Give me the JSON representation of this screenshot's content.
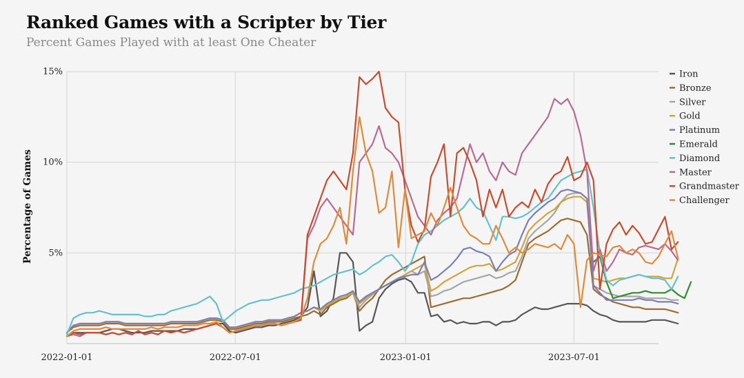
{
  "header": {
    "title": "Ranked Games with a Scripter by Tier",
    "subtitle": "Percent Games Played with at least One Cheater"
  },
  "chart_data": {
    "type": "line",
    "title": "Ranked Games with a Scripter by Tier",
    "subtitle": "Percent Games Played with at least One Cheater",
    "xlabel": "",
    "ylabel": "Percentage of Games",
    "ylim": [
      0,
      15
    ],
    "yticks": [
      5,
      10,
      15
    ],
    "ytick_labels": [
      "5%",
      "10%",
      "15%"
    ],
    "x_start_weeks": 0,
    "x_end_weeks": 91,
    "xticks_weeks": [
      0,
      25.9,
      52.1,
      78.0
    ],
    "xtick_labels": [
      "2022-01-01",
      "2022-07-01",
      "2023-01-01",
      "2023-07-01"
    ],
    "grid": true,
    "legend_position": "right",
    "series": [
      {
        "name": "Iron",
        "color": "#555555",
        "start": 0,
        "values": [
          0.4,
          0.6,
          0.6,
          0.6,
          0.6,
          0.6,
          0.7,
          0.8,
          0.8,
          0.7,
          0.6,
          0.6,
          0.6,
          0.7,
          0.7,
          0.7,
          0.7,
          0.7,
          0.8,
          0.8,
          0.8,
          0.9,
          1.0,
          1.1,
          1.1,
          0.7,
          0.6,
          0.7,
          0.8,
          0.9,
          0.9,
          1.0,
          1.0,
          1.1,
          1.2,
          1.3,
          1.5,
          2.0,
          4.0,
          1.5,
          1.8,
          2.5,
          5.0,
          5.0,
          4.5,
          0.7,
          1.0,
          1.2,
          2.5,
          3.0,
          3.3,
          3.5,
          3.6,
          3.4,
          2.8,
          2.8,
          1.5,
          1.6,
          1.2,
          1.3,
          1.1,
          1.2,
          1.1,
          1.1,
          1.2,
          1.2,
          1.0,
          1.2,
          1.2,
          1.3,
          1.6,
          1.8,
          2.0,
          1.9,
          1.9,
          2.0,
          2.1,
          2.2,
          2.2,
          2.2,
          2.1,
          1.8,
          1.6,
          1.5,
          1.3,
          1.2,
          1.2,
          1.2,
          1.2,
          1.2,
          1.3,
          1.3,
          1.3,
          1.2,
          1.1
        ]
      },
      {
        "name": "Bronze",
        "color": "#9c6b2e",
        "start": 0,
        "values": [
          0.6,
          0.9,
          1.0,
          1.0,
          1.0,
          1.0,
          1.1,
          1.1,
          1.1,
          1.0,
          1.0,
          1.0,
          1.0,
          1.0,
          1.0,
          1.0,
          1.1,
          1.1,
          1.1,
          1.1,
          1.1,
          1.2,
          1.3,
          1.3,
          1.2,
          0.8,
          0.8,
          0.9,
          1.0,
          1.1,
          1.1,
          1.2,
          1.2,
          1.2,
          1.3,
          1.4,
          1.5,
          1.6,
          1.8,
          1.6,
          2.0,
          2.2,
          2.4,
          2.5,
          2.8,
          1.8,
          2.2,
          2.5,
          3.0,
          3.5,
          3.8,
          4.0,
          4.2,
          4.4,
          4.6,
          4.8,
          2.0,
          2.1,
          2.2,
          2.3,
          2.4,
          2.5,
          2.5,
          2.6,
          2.7,
          2.8,
          2.9,
          3.0,
          3.2,
          3.5,
          4.5,
          5.5,
          5.8,
          6.0,
          6.2,
          6.5,
          6.8,
          6.9,
          6.8,
          6.7,
          6.0,
          3.0,
          2.7,
          2.5,
          2.3,
          2.2,
          2.1,
          2.0,
          2.0,
          1.9,
          1.9,
          1.9,
          1.9,
          1.8,
          1.7
        ]
      },
      {
        "name": "Silver",
        "color": "#a6a6a6",
        "start": 0,
        "values": [
          0.6,
          1.0,
          1.1,
          1.1,
          1.1,
          1.1,
          1.2,
          1.2,
          1.2,
          1.1,
          1.1,
          1.1,
          1.1,
          1.1,
          1.1,
          1.1,
          1.2,
          1.2,
          1.2,
          1.2,
          1.2,
          1.3,
          1.4,
          1.4,
          1.3,
          0.9,
          0.9,
          1.0,
          1.1,
          1.2,
          1.2,
          1.3,
          1.3,
          1.3,
          1.4,
          1.5,
          1.7,
          1.8,
          2.0,
          1.8,
          2.1,
          2.3,
          2.5,
          2.6,
          2.8,
          2.0,
          2.4,
          2.7,
          3.0,
          3.2,
          3.4,
          3.6,
          3.8,
          4.0,
          3.8,
          4.0,
          2.6,
          2.7,
          2.9,
          3.0,
          3.2,
          3.4,
          3.5,
          3.6,
          3.7,
          3.8,
          3.6,
          3.7,
          3.9,
          4.0,
          4.8,
          5.8,
          6.2,
          6.5,
          6.8,
          7.2,
          7.8,
          8.2,
          8.3,
          8.3,
          8.0,
          3.2,
          3.0,
          2.8,
          2.7,
          2.6,
          2.6,
          2.6,
          2.6,
          2.5,
          2.5,
          2.5,
          2.5,
          2.4,
          2.4
        ]
      },
      {
        "name": "Gold",
        "color": "#d1a33a",
        "start": 0,
        "values": [
          0.6,
          1.0,
          1.1,
          1.1,
          1.1,
          1.1,
          1.2,
          1.2,
          1.2,
          1.1,
          1.1,
          1.1,
          1.1,
          1.1,
          1.1,
          1.1,
          1.2,
          1.2,
          1.2,
          1.2,
          1.2,
          1.3,
          1.4,
          1.4,
          1.3,
          0.9,
          0.9,
          1.0,
          1.1,
          1.2,
          1.2,
          1.3,
          1.3,
          1.3,
          1.4,
          1.5,
          1.7,
          1.8,
          2.0,
          1.8,
          2.1,
          2.3,
          2.5,
          2.6,
          2.8,
          2.2,
          2.5,
          2.8,
          3.0,
          3.2,
          3.4,
          3.6,
          3.8,
          4.0,
          4.2,
          4.4,
          2.9,
          3.1,
          3.4,
          3.6,
          3.8,
          4.0,
          4.2,
          4.3,
          4.3,
          4.4,
          4.0,
          4.1,
          4.3,
          4.5,
          5.3,
          6.2,
          6.6,
          6.9,
          7.2,
          7.4,
          7.8,
          8.0,
          8.1,
          8.1,
          7.8,
          3.6,
          3.5,
          3.4,
          3.5,
          3.6,
          3.6,
          3.7,
          3.8,
          3.7,
          3.7,
          3.7,
          3.6,
          3.6,
          4.7
        ]
      },
      {
        "name": "Platinum",
        "color": "#7a7fb3",
        "start": 0,
        "values": [
          0.6,
          1.0,
          1.1,
          1.1,
          1.1,
          1.1,
          1.2,
          1.2,
          1.2,
          1.1,
          1.1,
          1.1,
          1.1,
          1.1,
          1.1,
          1.1,
          1.2,
          1.2,
          1.2,
          1.2,
          1.2,
          1.3,
          1.4,
          1.4,
          1.3,
          0.9,
          0.9,
          1.0,
          1.1,
          1.2,
          1.2,
          1.3,
          1.3,
          1.3,
          1.4,
          1.5,
          1.7,
          1.8,
          2.0,
          1.9,
          2.2,
          2.4,
          2.6,
          2.7,
          2.9,
          2.3,
          2.6,
          2.8,
          3.0,
          3.2,
          3.4,
          3.6,
          3.7,
          3.8,
          3.8,
          4.5,
          3.5,
          3.7,
          4.0,
          4.3,
          4.7,
          5.2,
          5.3,
          5.1,
          5.0,
          4.8,
          4.0,
          4.5,
          4.9,
          5.1,
          6.0,
          6.8,
          7.2,
          7.5,
          7.8,
          8.0,
          8.4,
          8.5,
          8.4,
          8.3,
          8.0,
          3.2,
          2.8,
          2.4,
          2.4,
          2.4,
          2.4,
          2.4,
          2.5,
          2.4,
          2.4,
          2.3,
          2.3,
          2.3,
          2.2
        ]
      },
      {
        "name": "Emerald",
        "color": "#2e8b2e",
        "start": 81,
        "values": [
          4.5,
          4.8,
          3.4,
          2.5,
          2.6,
          2.7,
          2.8,
          2.8,
          2.9,
          2.8,
          2.8,
          2.8,
          3.0,
          2.7,
          2.5,
          3.4
        ]
      },
      {
        "name": "Diamond",
        "color": "#66bfcc",
        "start": 0,
        "values": [
          0.5,
          1.4,
          1.6,
          1.7,
          1.7,
          1.8,
          1.7,
          1.6,
          1.6,
          1.6,
          1.6,
          1.6,
          1.5,
          1.5,
          1.6,
          1.6,
          1.8,
          1.9,
          2.0,
          2.1,
          2.2,
          2.4,
          2.6,
          2.2,
          1.2,
          1.5,
          1.8,
          2.0,
          2.2,
          2.3,
          2.4,
          2.4,
          2.5,
          2.6,
          2.7,
          2.8,
          3.0,
          3.1,
          3.2,
          3.4,
          3.6,
          3.8,
          3.9,
          4.0,
          4.1,
          3.8,
          4.0,
          4.3,
          4.5,
          4.8,
          4.9,
          4.5,
          4.0,
          4.5,
          5.5,
          6.0,
          6.2,
          6.5,
          6.8,
          7.0,
          7.2,
          7.5,
          8.0,
          7.5,
          7.3,
          6.5,
          5.7,
          7.0,
          7.0,
          6.9,
          7.0,
          7.2,
          7.5,
          7.8,
          8.0,
          8.5,
          9.0,
          9.2,
          9.4,
          9.5,
          9.6,
          7.5,
          5.0,
          3.5,
          3.2,
          3.5,
          3.6,
          3.7,
          3.8,
          3.7,
          3.6,
          3.6,
          3.5,
          3.0,
          3.7
        ]
      },
      {
        "name": "Master",
        "color": "#b86a8f",
        "start": 0,
        "values": [
          0.4,
          0.5,
          0.4,
          0.6,
          0.6,
          0.6,
          0.5,
          0.6,
          0.5,
          0.6,
          0.5,
          0.7,
          0.5,
          0.6,
          0.5,
          0.7,
          0.6,
          0.7,
          0.6,
          0.7,
          0.8,
          0.9,
          1.0,
          1.1,
          0.9,
          0.6,
          0.7,
          0.8,
          0.9,
          1.0,
          1.0,
          1.1,
          1.1,
          1.0,
          1.1,
          1.2,
          1.3,
          5.8,
          6.5,
          7.5,
          8.0,
          7.5,
          7.0,
          6.5,
          6.0,
          10.0,
          10.5,
          11.0,
          12.0,
          10.8,
          10.5,
          10.0,
          9.0,
          8.0,
          7.0,
          6.5,
          6.0,
          6.8,
          7.2,
          7.5,
          8.0,
          9.5,
          11.0,
          10.0,
          10.5,
          9.5,
          9.0,
          10.0,
          9.5,
          9.3,
          10.5,
          11.0,
          11.5,
          12.0,
          12.5,
          13.5,
          13.2,
          13.5,
          12.8,
          11.5,
          9.5,
          4.0,
          5.2,
          4.0,
          4.5,
          5.2,
          5.0,
          4.9,
          5.3,
          5.4,
          5.3,
          5.2,
          5.5,
          5.1,
          4.6
        ]
      },
      {
        "name": "Grandmaster",
        "color": "#c94a2c",
        "start": 0,
        "values": [
          0.4,
          0.6,
          0.5,
          0.6,
          0.6,
          0.6,
          0.5,
          0.6,
          0.5,
          0.6,
          0.5,
          0.7,
          0.5,
          0.6,
          0.5,
          0.7,
          0.6,
          0.7,
          0.6,
          0.7,
          0.8,
          0.9,
          1.0,
          1.1,
          0.9,
          0.6,
          0.7,
          0.8,
          0.9,
          1.0,
          1.0,
          1.1,
          1.1,
          1.0,
          1.1,
          1.2,
          1.3,
          6.0,
          7.0,
          8.0,
          9.0,
          9.5,
          9.0,
          8.5,
          10.5,
          14.7,
          14.3,
          14.6,
          15.0,
          13.0,
          12.5,
          12.2,
          8.5,
          6.5,
          5.6,
          6.3,
          9.2,
          10.0,
          11.0,
          7.0,
          10.5,
          10.8,
          10.0,
          9.0,
          7.0,
          8.5,
          7.5,
          8.5,
          7.0,
          7.5,
          7.8,
          7.5,
          8.5,
          7.8,
          8.8,
          9.3,
          9.5,
          10.3,
          9.0,
          9.2,
          10.0,
          9.0,
          3.0,
          5.5,
          6.3,
          6.7,
          6.0,
          6.5,
          6.1,
          5.5,
          5.6,
          6.3,
          7.0,
          5.2,
          5.6
        ]
      },
      {
        "name": "Challenger",
        "color": "#de8a3a",
        "start": 0,
        "values": [
          0.4,
          0.7,
          0.8,
          0.8,
          0.8,
          0.8,
          0.9,
          0.8,
          0.8,
          0.8,
          0.8,
          0.8,
          0.8,
          0.9,
          0.8,
          0.9,
          0.9,
          0.9,
          1.0,
          1.0,
          1.0,
          1.1,
          1.1,
          1.2,
          0.9,
          0.6,
          0.7,
          0.8,
          0.9,
          1.0,
          1.0,
          1.1,
          1.1,
          1.0,
          1.1,
          1.2,
          1.4,
          2.5,
          4.5,
          5.5,
          5.8,
          6.5,
          7.5,
          5.5,
          9.5,
          12.5,
          10.5,
          9.5,
          7.2,
          7.5,
          9.5,
          5.3,
          8.5,
          5.8,
          6.0,
          6.2,
          7.2,
          6.5,
          7.5,
          8.6,
          7.5,
          6.5,
          6.0,
          5.8,
          5.5,
          5.5,
          6.5,
          5.8,
          5.0,
          5.3,
          5.0,
          5.2,
          5.5,
          5.4,
          5.3,
          5.5,
          5.2,
          6.0,
          5.5,
          2.0,
          4.6,
          5.0,
          4.9,
          4.8,
          5.3,
          5.4,
          5.0,
          5.2,
          5.0,
          4.5,
          4.4,
          4.8,
          5.5,
          6.2,
          4.7
        ]
      }
    ]
  }
}
